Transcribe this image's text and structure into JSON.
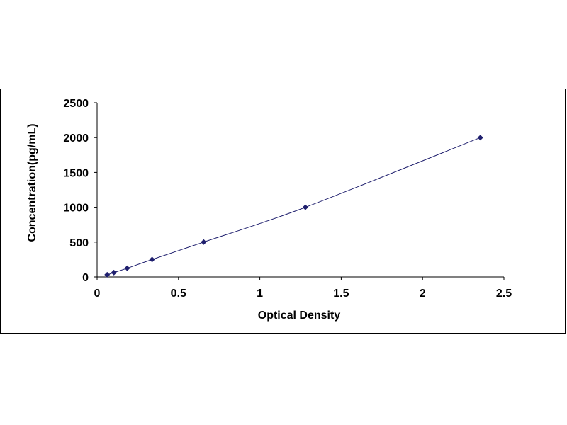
{
  "chart_data": {
    "type": "scatter",
    "title": "",
    "xlabel": "Optical Density",
    "ylabel": "Concentration(pg/mL)",
    "xlim": [
      0,
      2.5
    ],
    "ylim": [
      0,
      2500
    ],
    "x_ticks": [
      "0",
      "0.5",
      "1",
      "1.5",
      "2",
      "2.5"
    ],
    "y_ticks": [
      "0",
      "500",
      "1000",
      "1500",
      "2000",
      "2500"
    ],
    "grid": false,
    "legend": "none",
    "trendline": true,
    "series": [
      {
        "x": [
          0.062,
          0.103,
          0.185,
          0.338,
          0.655,
          1.28,
          2.355
        ],
        "y": [
          31.25,
          62.5,
          125,
          250,
          500,
          1000,
          2000
        ],
        "marker": "diamond",
        "color": "#1f1f6e"
      }
    ]
  }
}
